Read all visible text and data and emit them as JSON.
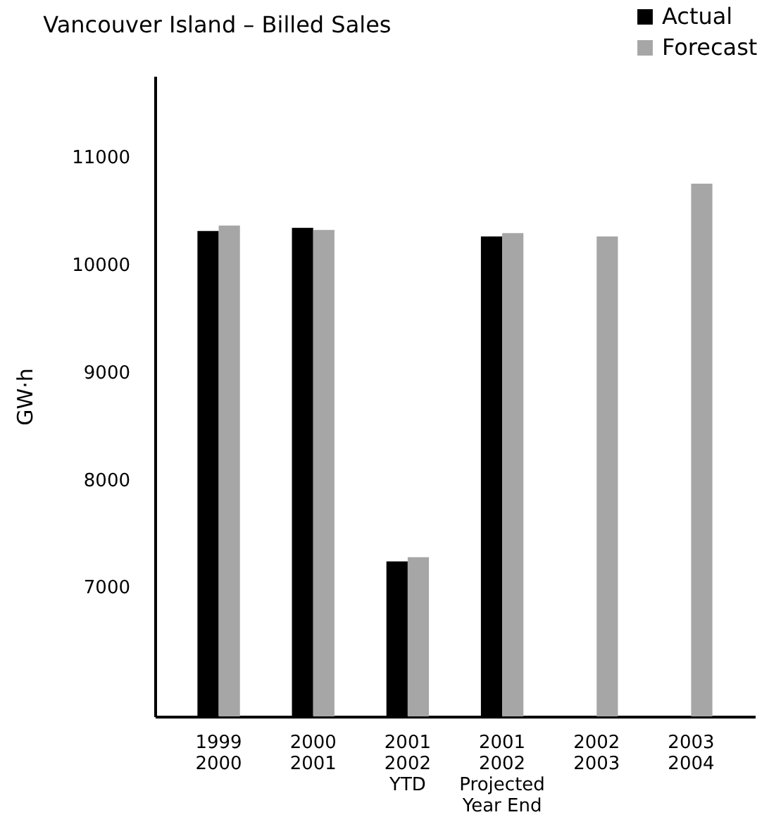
{
  "chart_data": {
    "type": "bar",
    "title": "Vancouver Island – Billed Sales",
    "ylabel": "GW·h",
    "categories": [
      "1999\n2000",
      "2000\n2001",
      "2001\n2002\nYTD",
      "2001\n2002\nProjected\nYear End",
      "2002\n2003",
      "2003\n2004"
    ],
    "series": [
      {
        "name": "Actual",
        "color": "#000000",
        "values": [
          10310,
          10340,
          7240,
          10260,
          null,
          null
        ]
      },
      {
        "name": "Forecast",
        "color": "#a6a6a6",
        "values": [
          10360,
          10320,
          7280,
          10290,
          10260,
          10750
        ]
      }
    ],
    "ylim": [
      5800,
      11750
    ],
    "yticks": [
      7000,
      8000,
      9000,
      10000,
      11000
    ],
    "grid": false,
    "legend": "top right"
  }
}
